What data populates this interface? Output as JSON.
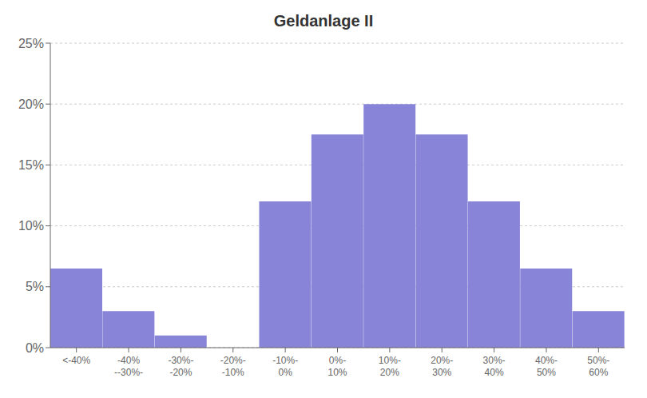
{
  "chart_data": {
    "type": "bar",
    "title": "Geldanlage II",
    "categories": [
      "<-40%",
      "-40%\n--30%-",
      "-30%-\n-20%",
      "-20%-\n-10%",
      "-10%-\n0%",
      "0%-\n10%",
      "10%-\n20%",
      "20%-\n30%",
      "30%-\n40%",
      "40%-\n50%",
      "50%-\n60%"
    ],
    "values": [
      6.5,
      3.0,
      1.0,
      0.0,
      12.0,
      17.5,
      20.0,
      17.5,
      12.0,
      6.5,
      3.0
    ],
    "color": "#8884d8",
    "ylim": [
      0,
      25
    ],
    "yticks": [
      {
        "value": 0,
        "label": "0%"
      },
      {
        "value": 5,
        "label": "5%"
      },
      {
        "value": 10,
        "label": "10%"
      },
      {
        "value": 15,
        "label": "15%"
      },
      {
        "value": 20,
        "label": "20%"
      },
      {
        "value": 25,
        "label": "25%"
      }
    ],
    "grid": true
  }
}
